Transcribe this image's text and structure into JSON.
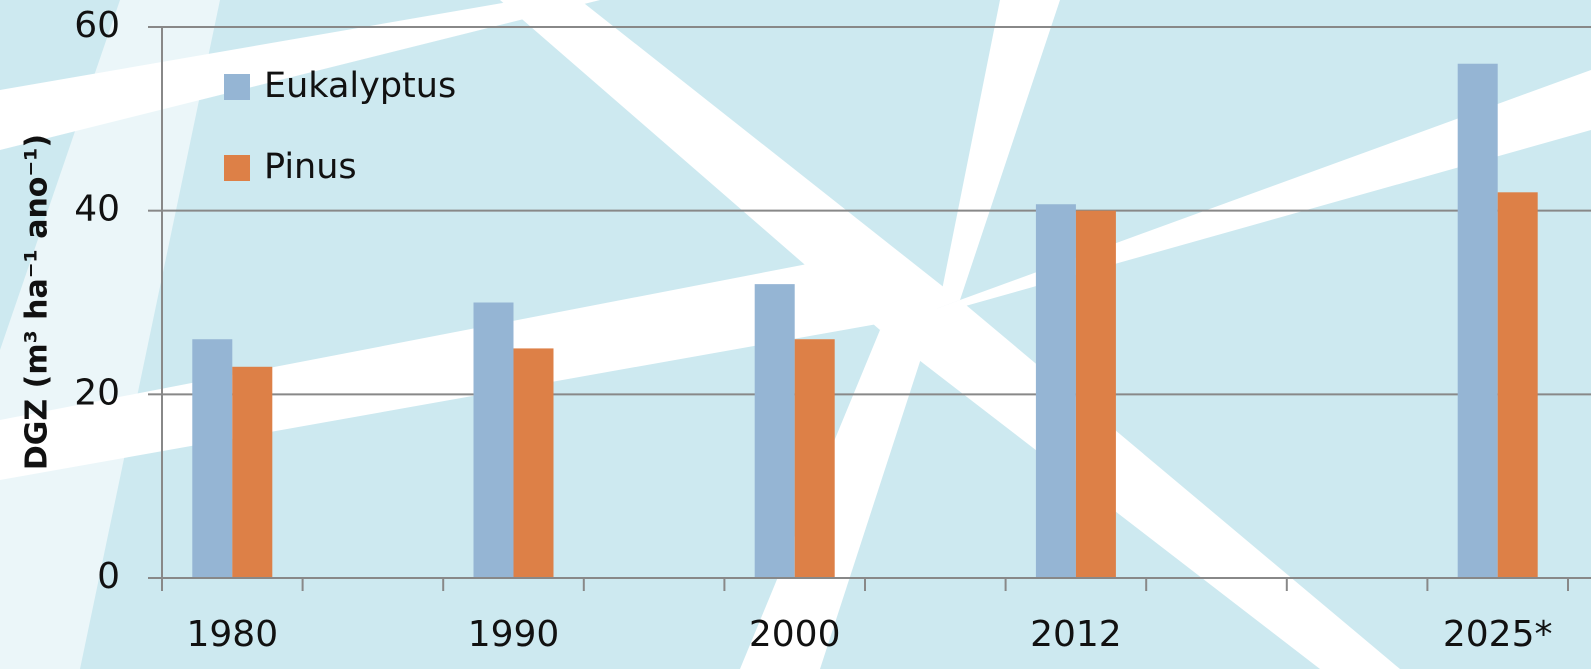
{
  "chart_data": {
    "type": "bar",
    "y_label": "DGZ (m³ ha⁻¹ ano⁻¹)",
    "categories": [
      "1980",
      null,
      "1990",
      null,
      "2000",
      null,
      "2012",
      null,
      null,
      "2025*"
    ],
    "series": [
      {
        "name": "Eukalyptus",
        "color": "#95b5d4",
        "values": [
          26,
          null,
          30,
          null,
          32,
          null,
          40.7,
          null,
          null,
          56
        ]
      },
      {
        "name": "Pinus",
        "color": "#dd8047",
        "values": [
          23,
          null,
          25,
          null,
          26,
          null,
          40,
          null,
          null,
          42
        ]
      }
    ],
    "ylim": [
      0,
      60
    ],
    "yticks": [
      0,
      20,
      40,
      60
    ],
    "grid": true,
    "legend": "upper left"
  }
}
